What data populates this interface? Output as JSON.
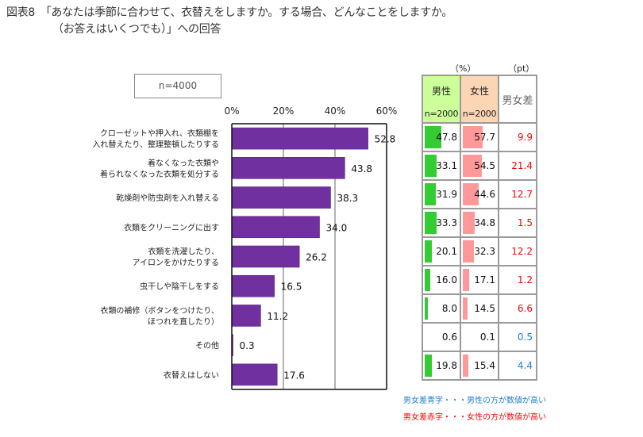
{
  "title": {
    "line1": "図表8　「あなたは季節に合わせて、衣替えをしますか。する場合、どんなことをしますか。",
    "line2": "（お答えはいくつでも）」への回答"
  },
  "sample_box": "n=4000",
  "table": {
    "unit_pct": "（%）",
    "unit_pt": "（pt）",
    "headers": [
      {
        "label": "男性",
        "n": "n=2000"
      },
      {
        "label": "女性",
        "n": "n=2000"
      },
      {
        "label": "男女差"
      }
    ],
    "rows": [
      {
        "male": "47.8",
        "female": "57.7",
        "diff": "9.9",
        "diff_color": "red"
      },
      {
        "male": "33.1",
        "female": "54.5",
        "diff": "21.4",
        "diff_color": "red"
      },
      {
        "male": "31.9",
        "female": "44.6",
        "diff": "12.7",
        "diff_color": "red"
      },
      {
        "male": "33.3",
        "female": "34.8",
        "diff": "1.5",
        "diff_color": "red"
      },
      {
        "male": "20.1",
        "female": "32.3",
        "diff": "12.2",
        "diff_color": "red"
      },
      {
        "male": "16.0",
        "female": "17.1",
        "diff": "1.2",
        "diff_color": "red"
      },
      {
        "male": "8.0",
        "female": "14.5",
        "diff": "6.6",
        "diff_color": "red"
      },
      {
        "male": "0.6",
        "female": "0.1",
        "diff": "0.5",
        "diff_color": "blue"
      },
      {
        "male": "19.8",
        "female": "15.4",
        "diff": "4.4",
        "diff_color": "blue"
      }
    ],
    "colors": {
      "male_bar": "#33cc33",
      "female_bar": "#ff9999",
      "red": "#ff0000",
      "blue": "#1f7fd0"
    }
  },
  "notes": {
    "blue": "男女差青字・・・男性の方が数値が高い",
    "red": "男女差赤字・・・女性の方が数値が高い"
  },
  "chart_data": {
    "type": "bar",
    "orientation": "horizontal",
    "title": "「あなたは季節に合わせて、衣替えをしますか。する場合、どんなことをしますか。（お答えはいくつでも）」への回答",
    "categories": [
      [
        "クローゼットや押入れ、衣類棚を",
        "入れ替えたり、整理整頓したりする"
      ],
      [
        "着なくなった衣類や",
        "着られなくなった衣類を処分する"
      ],
      [
        "乾燥剤や防虫剤を入れ替える"
      ],
      [
        "衣類をクリーニングに出す"
      ],
      [
        "衣類を洗濯したり、",
        "アイロンをかけたりする"
      ],
      [
        "虫干しや陰干しをする"
      ],
      [
        "衣類の補修（ボタンをつけたり、",
        "ほつれを直したり）"
      ],
      [
        "その他"
      ],
      [
        "衣替えはしない"
      ]
    ],
    "values": [
      52.8,
      43.8,
      38.3,
      34.0,
      26.2,
      16.5,
      11.2,
      0.3,
      17.6
    ],
    "value_labels": [
      "52.8",
      "43.8",
      "38.3",
      "34.0",
      "26.2",
      "16.5",
      "11.2",
      "0.3",
      "17.6"
    ],
    "xlim": [
      0,
      60
    ],
    "xticks": [
      0,
      20,
      40,
      60
    ],
    "xtick_labels": [
      "0%",
      "20%",
      "40%",
      "60%"
    ],
    "xlabel": "",
    "ylabel": "",
    "grid": true,
    "bar_color": "#7030a0",
    "sample": "n=4000",
    "series_by_gender": [
      {
        "name": "男性 n=2000",
        "values": [
          47.8,
          33.1,
          31.9,
          33.3,
          20.1,
          16.0,
          8.0,
          0.6,
          19.8
        ]
      },
      {
        "name": "女性 n=2000",
        "values": [
          57.7,
          54.5,
          44.6,
          34.8,
          32.3,
          17.1,
          14.5,
          0.1,
          15.4
        ]
      }
    ],
    "gender_gap_pt": [
      9.9,
      21.4,
      12.7,
      1.5,
      12.2,
      1.2,
      6.6,
      0.5,
      4.4
    ]
  }
}
